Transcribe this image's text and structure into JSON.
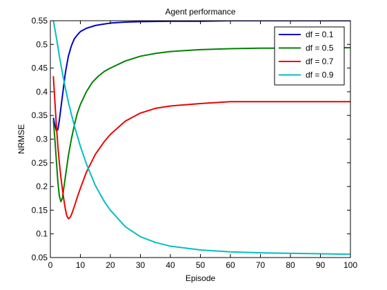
{
  "chart_data": {
    "type": "line",
    "title": "Agent performance",
    "xlabel": "Episode",
    "ylabel": "NRMSE",
    "xlim": [
      0,
      100
    ],
    "ylim": [
      0.05,
      0.55
    ],
    "xticks": [
      0,
      10,
      20,
      30,
      40,
      50,
      60,
      70,
      80,
      90,
      100
    ],
    "yticks": [
      0.05,
      0.1,
      0.15,
      0.2,
      0.25,
      0.3,
      0.35,
      0.4,
      0.45,
      0.5,
      0.55
    ],
    "xtick_labels": [
      "0",
      "10",
      "20",
      "30",
      "40",
      "50",
      "60",
      "70",
      "80",
      "90",
      "100"
    ],
    "ytick_labels": [
      "0.05",
      "0.1",
      "0.15",
      "0.2",
      "0.25",
      "0.3",
      "0.35",
      "0.4",
      "0.45",
      "0.5",
      "0.55"
    ],
    "grid": false,
    "legend_position": "top-right",
    "series": [
      {
        "name": "df = 0.1",
        "color": "#0000cc",
        "x": [
          1,
          1.5,
          2,
          2.5,
          3,
          4,
          5,
          6,
          7,
          8,
          9,
          10,
          12,
          15,
          18,
          20,
          25,
          30,
          40,
          50,
          60,
          70,
          80,
          90,
          100
        ],
        "y": [
          0.345,
          0.33,
          0.318,
          0.32,
          0.34,
          0.39,
          0.44,
          0.475,
          0.497,
          0.512,
          0.52,
          0.527,
          0.534,
          0.54,
          0.543,
          0.545,
          0.547,
          0.548,
          0.549,
          0.549,
          0.55,
          0.55,
          0.55,
          0.55,
          0.55
        ]
      },
      {
        "name": "df = 0.5",
        "color": "#008000",
        "x": [
          1,
          1.5,
          2,
          2.5,
          3,
          3.5,
          4,
          5,
          6,
          7,
          8,
          9,
          10,
          12,
          14,
          16,
          18,
          20,
          25,
          30,
          35,
          40,
          50,
          60,
          70,
          80,
          90,
          100
        ],
        "y": [
          0.34,
          0.3,
          0.255,
          0.21,
          0.18,
          0.168,
          0.175,
          0.22,
          0.265,
          0.3,
          0.33,
          0.355,
          0.373,
          0.4,
          0.42,
          0.433,
          0.443,
          0.45,
          0.465,
          0.475,
          0.481,
          0.485,
          0.489,
          0.491,
          0.492,
          0.492,
          0.493,
          0.493
        ]
      },
      {
        "name": "df = 0.7",
        "color": "#ee0000",
        "x": [
          1,
          1.5,
          2,
          2.5,
          3,
          3.5,
          4,
          4.5,
          5,
          5.5,
          6,
          6.5,
          7,
          8,
          9,
          10,
          12,
          15,
          18,
          20,
          25,
          30,
          35,
          40,
          50,
          60,
          70,
          80,
          90,
          100
        ],
        "y": [
          0.433,
          0.38,
          0.33,
          0.285,
          0.25,
          0.22,
          0.195,
          0.172,
          0.152,
          0.138,
          0.132,
          0.134,
          0.14,
          0.158,
          0.178,
          0.196,
          0.23,
          0.268,
          0.295,
          0.31,
          0.338,
          0.355,
          0.365,
          0.37,
          0.375,
          0.379,
          0.379,
          0.379,
          0.379,
          0.379
        ]
      },
      {
        "name": "df = 0.9",
        "color": "#00bfbf",
        "x": [
          1,
          2,
          3,
          4,
          5,
          6,
          8,
          10,
          12,
          15,
          18,
          20,
          25,
          30,
          35,
          40,
          50,
          60,
          70,
          80,
          90,
          100
        ],
        "y": [
          0.55,
          0.515,
          0.475,
          0.44,
          0.408,
          0.378,
          0.328,
          0.285,
          0.248,
          0.202,
          0.168,
          0.15,
          0.115,
          0.094,
          0.082,
          0.074,
          0.066,
          0.062,
          0.06,
          0.059,
          0.058,
          0.057
        ]
      }
    ]
  }
}
